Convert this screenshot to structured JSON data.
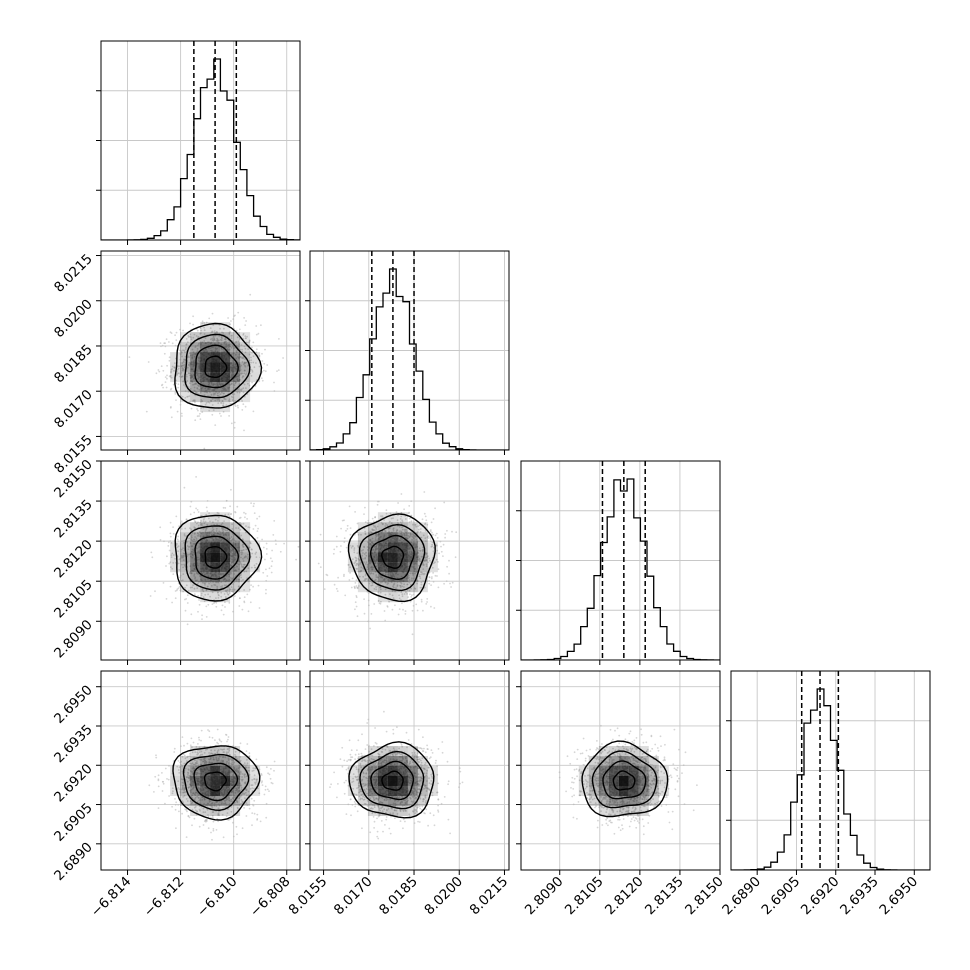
{
  "chart_data": {
    "type": "corner",
    "title": "",
    "parameters": [
      {
        "name": "",
        "range": [
          -6.815,
          -6.8075
        ],
        "ticks": [
          -6.814,
          -6.812,
          -6.81,
          -6.808
        ],
        "tick_labels": [
          "−6.814",
          "−6.812",
          "−6.810",
          "−6.808"
        ],
        "quantiles": [
          -6.8115,
          -6.8107,
          -6.8099
        ],
        "mean": -6.8107,
        "sigma": 0.0008
      },
      {
        "name": "",
        "range": [
          8.01505,
          8.02165
        ],
        "ticks": [
          8.0155,
          8.017,
          8.0185,
          8.02,
          8.0215
        ],
        "tick_labels": [
          "8.0155",
          "8.0170",
          "8.0185",
          "8.0200",
          "8.0215"
        ],
        "quantiles": [
          8.0171,
          8.0178,
          8.0185
        ],
        "mean": 8.0178,
        "sigma": 0.0007
      },
      {
        "name": "",
        "range": [
          2.80755,
          2.815
        ],
        "ticks": [
          2.809,
          2.8105,
          2.812,
          2.8135,
          2.815
        ],
        "tick_labels": [
          "2.8090",
          "2.8105",
          "2.8120",
          "2.8135",
          "2.8150"
        ],
        "quantiles": [
          2.8106,
          2.8114,
          2.8122
        ],
        "mean": 2.8114,
        "sigma": 0.0008
      },
      {
        "name": "",
        "range": [
          2.688,
          2.6956
        ],
        "ticks": [
          2.689,
          2.6905,
          2.692,
          2.6935,
          2.695
        ],
        "tick_labels": [
          "2.6890",
          "2.6905",
          "2.6920",
          "2.6935",
          "2.6950"
        ],
        "quantiles": [
          2.6907,
          2.6914,
          2.6921
        ],
        "mean": 2.6914,
        "sigma": 0.0007
      }
    ],
    "contour_levels_sigma": [
      0.5,
      1.0,
      1.5,
      2.0
    ],
    "grid": true,
    "colors": {
      "line": "#000000",
      "grid": "#c8c8c8",
      "points": "#b4b4b4",
      "density": "#000000"
    }
  }
}
